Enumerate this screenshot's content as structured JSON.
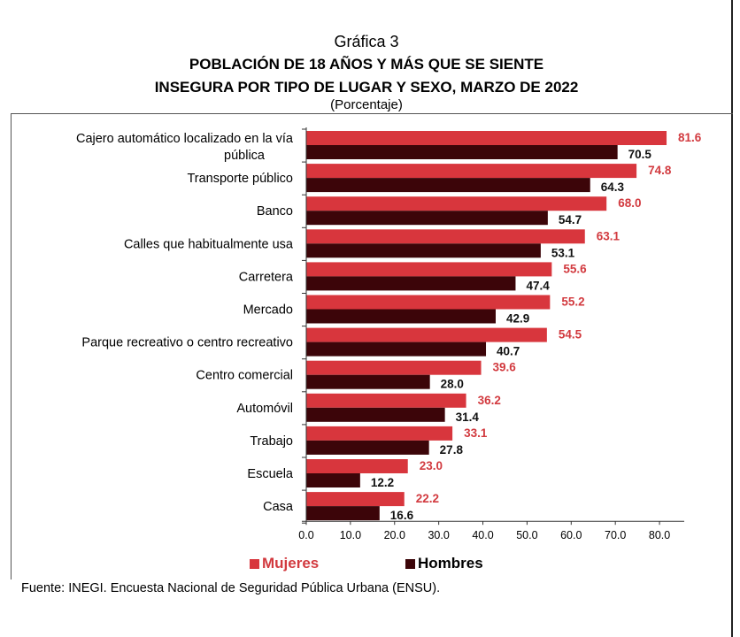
{
  "figure_label": "Gráfica 3",
  "title_line1": "POBLACIÓN DE 18 AÑOS Y MÁS QUE SE SIENTE",
  "title_line2": "INSEGURA POR TIPO DE LUGAR Y SEXO, MARZO DE 2022",
  "subtitle": "(Porcentaje)",
  "source": "Fuente: INEGI. Encuesta Nacional de Seguridad Pública Urbana (ENSU).",
  "colors": {
    "mujeres": "#d8363d",
    "hombres": "#3c0509"
  },
  "chart_data": {
    "type": "bar",
    "orientation": "horizontal",
    "categories": [
      [
        "Cajero automático localizado en la vía",
        "pública"
      ],
      [
        "Transporte público"
      ],
      [
        "Banco"
      ],
      [
        "Calles que habitualmente usa"
      ],
      [
        "Carretera"
      ],
      [
        "Mercado"
      ],
      [
        "Parque recreativo o centro recreativo"
      ],
      [
        "Centro comercial"
      ],
      [
        "Automóvil"
      ],
      [
        "Trabajo"
      ],
      [
        "Escuela"
      ],
      [
        "Casa"
      ]
    ],
    "series": [
      {
        "name": "Mujeres",
        "values": [
          81.6,
          74.8,
          68.0,
          63.1,
          55.6,
          55.2,
          54.5,
          39.6,
          36.2,
          33.1,
          23.0,
          22.2
        ]
      },
      {
        "name": "Hombres",
        "values": [
          70.5,
          64.3,
          54.7,
          53.1,
          47.4,
          42.9,
          40.7,
          28.0,
          31.4,
          27.8,
          12.2,
          16.6
        ]
      }
    ],
    "xlim": [
      0,
      85
    ],
    "xticks": [
      "0.0",
      "10.0",
      "20.0",
      "30.0",
      "40.0",
      "50.0",
      "60.0",
      "70.0",
      "80.0"
    ],
    "legend": "bottom",
    "grid": false
  }
}
